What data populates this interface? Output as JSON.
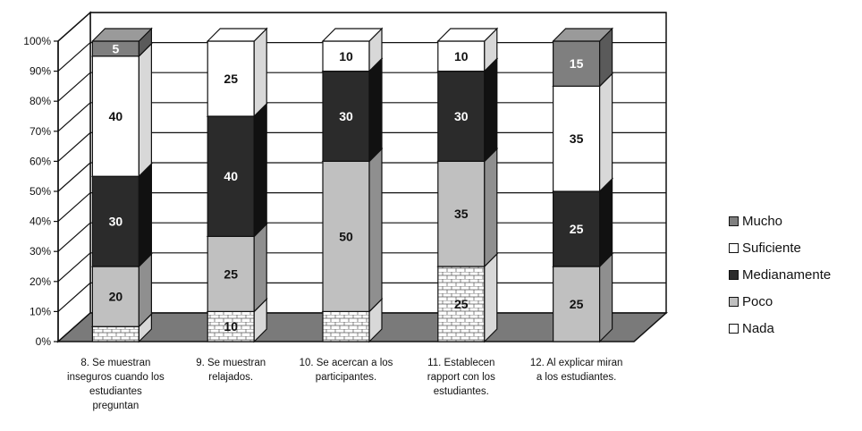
{
  "chart_data": {
    "type": "stacked-bar-3d",
    "categories": [
      [
        "8. Se muestran",
        "inseguros cuando los",
        "estudiantes",
        "preguntan"
      ],
      [
        "9. Se muestran",
        "relajados."
      ],
      [
        "10. Se acercan a los",
        "participantes."
      ],
      [
        "11. Establecen",
        "rapport con los",
        "estudiantes."
      ],
      [
        "12. Al explicar miran",
        "a los estudiantes."
      ]
    ],
    "series": [
      {
        "name": "Nada",
        "values": [
          5,
          10,
          10,
          25,
          0
        ],
        "color": "#ffffff",
        "pattern": "brick"
      },
      {
        "name": "Poco",
        "values": [
          20,
          25,
          50,
          35,
          25
        ],
        "color": "#c0c0c0"
      },
      {
        "name": "Medianamente",
        "values": [
          30,
          40,
          30,
          30,
          25
        ],
        "color": "#2b2b2b"
      },
      {
        "name": "Suficiente",
        "values": [
          40,
          25,
          10,
          10,
          35
        ],
        "color": "#ffffff"
      },
      {
        "name": "Mucho",
        "values": [
          5,
          0,
          0,
          0,
          15
        ],
        "color": "#7f7f7f"
      }
    ],
    "data_labels": [
      [
        "",
        "20",
        "30",
        "40",
        "5"
      ],
      [
        "10",
        "25",
        "40",
        "25",
        ""
      ],
      [
        "",
        "50",
        "30",
        "10",
        ""
      ],
      [
        "25",
        "35",
        "30",
        "10",
        ""
      ],
      [
        "",
        "25",
        "25",
        "35",
        "15"
      ]
    ],
    "y_ticks": [
      "0%",
      "10%",
      "20%",
      "30%",
      "40%",
      "50%",
      "60%",
      "70%",
      "80%",
      "90%",
      "100%"
    ],
    "ylim": [
      0,
      100
    ],
    "grid": true,
    "legend_position": "right"
  }
}
